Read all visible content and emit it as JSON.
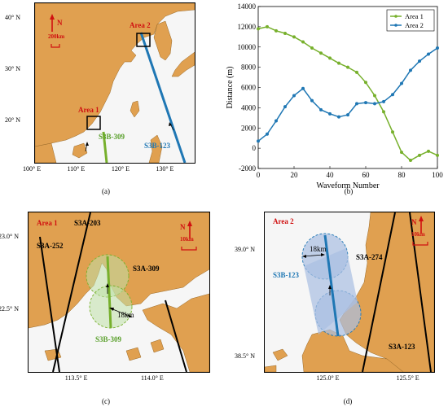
{
  "panel_a": {
    "caption": "(a)",
    "lat_ticks": [
      {
        "v": 20,
        "label": "20° N"
      },
      {
        "v": 30,
        "label": "30° N"
      },
      {
        "v": 40,
        "label": "40° N"
      }
    ],
    "lon_ticks": [
      {
        "v": 100,
        "label": "100° E"
      },
      {
        "v": 110,
        "label": "110° E"
      },
      {
        "v": 120,
        "label": "120° E"
      },
      {
        "v": 130,
        "label": "130° E"
      }
    ],
    "north": "N",
    "scale": "200km",
    "area1": "Area 1",
    "area2": "Area 2",
    "track_green": "S3B-309",
    "track_blue": "S3B-123"
  },
  "panel_c": {
    "caption": "(c)",
    "area": "Area 1",
    "lat_ticks": [
      {
        "v": 22.5,
        "label": "22.5° N"
      },
      {
        "v": 23.0,
        "label": "23.0° N"
      }
    ],
    "lon_ticks": [
      {
        "v": 113.5,
        "label": "113.5° E"
      },
      {
        "v": 114.0,
        "label": "114.0° E"
      }
    ],
    "north": "N",
    "scale": "10km",
    "tracks": [
      "S3A-203",
      "S3A-252",
      "S3A-309"
    ],
    "track_green": "S3B-309",
    "radius": "18km"
  },
  "panel_d": {
    "caption": "(d)",
    "area": "Area 2",
    "lat_ticks": [
      {
        "v": 38.5,
        "label": "38.5° N"
      },
      {
        "v": 39.0,
        "label": "39.0° N"
      }
    ],
    "lon_ticks": [
      {
        "v": 125.0,
        "label": "125.0° E"
      },
      {
        "v": 125.5,
        "label": "125.5° E"
      }
    ],
    "north": "N",
    "scale": "10km",
    "tracks": [
      "S3A-274",
      "S3A-123"
    ],
    "track_blue": "S3B-123",
    "radius": "18km"
  },
  "chart_data": {
    "type": "line",
    "caption": "(b)",
    "title": "",
    "xlabel": "Waveform Number",
    "ylabel": "Distance (m)",
    "xlim": [
      0,
      100
    ],
    "ylim": [
      -2000,
      14000
    ],
    "xticks": [
      0,
      20,
      40,
      60,
      80,
      100
    ],
    "yticks": [
      -2000,
      0,
      2000,
      4000,
      6000,
      8000,
      10000,
      12000,
      14000
    ],
    "grid": false,
    "legend": "top-right",
    "x": [
      0,
      5,
      10,
      15,
      20,
      25,
      30,
      35,
      40,
      45,
      50,
      55,
      60,
      65,
      70,
      75,
      80,
      85,
      90,
      95,
      100
    ],
    "series": [
      {
        "name": "Area 1",
        "color": "#77b02c",
        "values": [
          11800,
          12000,
          11600,
          11350,
          11000,
          10500,
          9900,
          9400,
          8900,
          8400,
          8000,
          7500,
          6500,
          5200,
          3600,
          1600,
          -400,
          -1200,
          -700,
          -300,
          -700
        ]
      },
      {
        "name": "Area 2",
        "color": "#1f77b4",
        "values": [
          700,
          1400,
          2700,
          4100,
          5200,
          5900,
          4700,
          3800,
          3400,
          3100,
          3300,
          4400,
          4500,
          4400,
          4600,
          5300,
          6400,
          7700,
          8600,
          9300,
          9900
        ]
      }
    ]
  }
}
